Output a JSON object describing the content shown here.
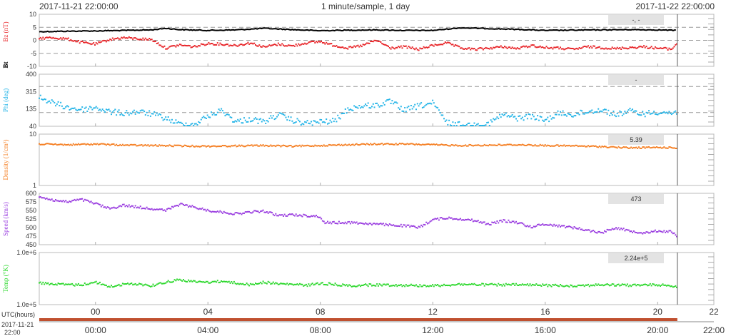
{
  "header": {
    "start_time": "2017-11-21 22:00:00",
    "resolution": "1 minute/sample, 1 day",
    "end_time": "2017-11-22 22:00:00"
  },
  "x_axis": {
    "label": "UTC(hours)",
    "ticks": [
      "00",
      "04",
      "08",
      "12",
      "16",
      "20",
      "22"
    ],
    "bottom_ticks": [
      "00:00",
      "04:00",
      "08:00",
      "12:00",
      "16:00",
      "20:00",
      "22:00"
    ],
    "date_line1": "2017-11-21",
    "date_line2": "22:00"
  },
  "panels": [
    {
      "ylabel": "Bz (nT)",
      "ylabel2": "Bt",
      "ticks": [
        "10",
        "5",
        "0",
        "-5",
        "-10"
      ],
      "readout": "-, -"
    },
    {
      "ylabel": "Phi (deg)",
      "ticks": [
        "400",
        "315",
        "135",
        "40"
      ],
      "readout": "-"
    },
    {
      "ylabel": "Density (1/cm³)",
      "ticks": [
        "10",
        "1"
      ],
      "readout": "5.39"
    },
    {
      "ylabel": "Speed (km/s)",
      "ticks": [
        "600",
        "575",
        "550",
        "525",
        "500",
        "475",
        "450"
      ],
      "readout": "473"
    },
    {
      "ylabel": "Temp (°K)",
      "ticks": [
        "1.0e+6",
        "1.0e+5"
      ],
      "readout": "2.24e+5"
    }
  ],
  "colors": {
    "bt": "#000000",
    "bz": "#e8262a",
    "phi": "#29b6e8",
    "density": "#f58025",
    "speed": "#9b3fe0",
    "temp": "#2ed82e",
    "now_line": "#555555",
    "readout_box": "#e3e3e3"
  },
  "chart_data": {
    "type": "scatter",
    "title": "1 minute/sample, 1 day",
    "xlabel": "UTC(hours)",
    "x_range_hours": [
      -2,
      22
    ],
    "now_marker_hour": 20.7,
    "subplots": [
      {
        "ylabel": "Bz (nT)",
        "ylim": [
          -10,
          10
        ],
        "reference_lines": [
          5,
          0,
          -5
        ],
        "series": [
          {
            "name": "Bt",
            "color": "#000000",
            "x": [
              -2,
              -1,
              0,
              1,
              2,
              2.5,
              3,
              4,
              5,
              6,
              7,
              8,
              9,
              10,
              11,
              12,
              13,
              14,
              15,
              16,
              17,
              18,
              19,
              20,
              20.7
            ],
            "y": [
              3.3,
              3.5,
              3.6,
              3.8,
              4.0,
              4.6,
              4.1,
              3.8,
              4.0,
              4.6,
              4.1,
              3.7,
              3.9,
              4.0,
              3.8,
              3.8,
              4.8,
              4.5,
              4.2,
              3.8,
              3.9,
              4.0,
              4.1,
              4.0,
              3.8
            ]
          },
          {
            "name": "Bz",
            "color": "#e8262a",
            "x": [
              -2,
              -1.5,
              -1,
              -0.5,
              0,
              0.5,
              1,
              1.5,
              2,
              2.5,
              3,
              3.5,
              4,
              4.5,
              5,
              5.5,
              6,
              6.5,
              7,
              7.5,
              8,
              8.5,
              9,
              9.5,
              10,
              10.5,
              11,
              11.5,
              12,
              12.5,
              13,
              13.5,
              14,
              14.5,
              15,
              15.5,
              16,
              16.5,
              17,
              17.5,
              18,
              18.5,
              19,
              19.5,
              20,
              20.5,
              20.7
            ],
            "y": [
              0.8,
              1.0,
              0.5,
              -0.8,
              -1.5,
              0.3,
              1.0,
              0.6,
              0.3,
              -3.0,
              -1.8,
              -2.5,
              -1.2,
              -1.5,
              -2.0,
              -1.0,
              -2.6,
              -1.5,
              -2.2,
              -1.0,
              -0.5,
              -2.0,
              -3.0,
              -2.0,
              0.0,
              -3.0,
              -2.5,
              -3.5,
              -2.0,
              -1.0,
              -3.0,
              -3.5,
              -3.0,
              -2.5,
              -3.2,
              -2.0,
              -2.8,
              -3.0,
              -3.5,
              -2.5,
              -2.8,
              -3.2,
              -2.8,
              -2.5,
              -3.0,
              -3.4,
              -1.0
            ]
          }
        ]
      },
      {
        "ylabel": "Phi (deg)",
        "ylim": [
          40,
          400
        ],
        "reference_lines": [
          315,
          135
        ],
        "series": [
          {
            "name": "Phi",
            "color": "#29b6e8",
            "x": [
              -2,
              -1.5,
              -1,
              -0.5,
              0,
              0.5,
              1,
              1.5,
              2,
              2.5,
              3,
              3.5,
              4,
              4.5,
              5,
              5.5,
              6,
              6.5,
              7,
              7.5,
              8,
              8.5,
              9,
              9.5,
              10,
              10.5,
              11,
              11.5,
              12,
              12.5,
              13,
              13.5,
              14,
              14.5,
              15,
              15.5,
              16,
              16.5,
              17,
              17.5,
              18,
              18.5,
              19,
              19.5,
              20,
              20.5,
              20.7
            ],
            "y": [
              240,
              200,
              170,
              155,
              170,
              140,
              130,
              140,
              125,
              95,
              55,
              50,
              110,
              150,
              70,
              90,
              70,
              120,
              80,
              60,
              70,
              75,
              160,
              180,
              185,
              210,
              150,
              180,
              200,
              65,
              50,
              45,
              60,
              120,
              95,
              110,
              80,
              130,
              120,
              140,
              155,
              120,
              145,
              125,
              140,
              130,
              140
            ]
          }
        ]
      },
      {
        "ylabel": "Density (1/cm³)",
        "ylim": [
          1,
          10
        ],
        "log_scale": true,
        "series": [
          {
            "name": "Density",
            "color": "#f58025",
            "x": [
              -2,
              -1,
              0,
              1,
              2,
              3,
              4,
              5,
              6,
              7,
              8,
              9,
              10,
              11,
              12,
              13,
              14,
              15,
              16,
              17,
              18,
              19,
              20,
              20.7
            ],
            "y": [
              6.4,
              6.2,
              6.4,
              6.1,
              6.0,
              5.9,
              5.8,
              5.9,
              6.0,
              5.8,
              6.0,
              6.2,
              6.4,
              6.4,
              6.2,
              6.0,
              6.1,
              6.2,
              6.0,
              5.9,
              5.7,
              5.4,
              5.5,
              5.4
            ]
          }
        ]
      },
      {
        "ylabel": "Speed (km/s)",
        "ylim": [
          450,
          600
        ],
        "series": [
          {
            "name": "Speed",
            "color": "#9b3fe0",
            "x": [
              -2,
              -1.5,
              -1,
              -0.5,
              0,
              0.5,
              1,
              1.5,
              2,
              2.5,
              3,
              3.5,
              4,
              4.5,
              5,
              5.5,
              6,
              6.5,
              7,
              7.5,
              8,
              8.1,
              8.5,
              9,
              10,
              11,
              11.5,
              12,
              12.5,
              13,
              13.5,
              14,
              14.5,
              15,
              15.5,
              16,
              16.5,
              17,
              17.5,
              18,
              18.5,
              19,
              19.5,
              20,
              20.5,
              20.7
            ],
            "y": [
              590,
              580,
              575,
              582,
              570,
              555,
              565,
              560,
              555,
              550,
              568,
              560,
              550,
              545,
              540,
              545,
              548,
              535,
              537,
              535,
              532,
              515,
              514,
              515,
              510,
              505,
              500,
              523,
              528,
              525,
              520,
              510,
              520,
              515,
              502,
              510,
              505,
              500,
              492,
              485,
              500,
              490,
              485,
              490,
              488,
              473
            ]
          }
        ]
      },
      {
        "ylabel": "Temp (°K)",
        "ylim": [
          100000,
          1000000
        ],
        "log_scale": true,
        "series": [
          {
            "name": "Temp",
            "color": "#2ed82e",
            "x": [
              -2,
              -1.5,
              -1,
              -0.5,
              0,
              0.5,
              1,
              1.5,
              2,
              2.5,
              3,
              3.5,
              4,
              4.5,
              5,
              5.5,
              6,
              6.5,
              7,
              7.5,
              8,
              8.5,
              9,
              10,
              11,
              12,
              13,
              14,
              15,
              16,
              17,
              18,
              19,
              20,
              20.7
            ],
            "y": [
              260000,
              250000,
              240000,
              240000,
              270000,
              220000,
              245000,
              250000,
              230000,
              270000,
              300000,
              275000,
              270000,
              280000,
              260000,
              240000,
              270000,
              250000,
              245000,
              235000,
              255000,
              245000,
              230000,
              240000,
              235000,
              230000,
              245000,
              240000,
              240000,
              235000,
              230000,
              240000,
              235000,
              240000,
              224000
            ]
          }
        ]
      }
    ]
  }
}
